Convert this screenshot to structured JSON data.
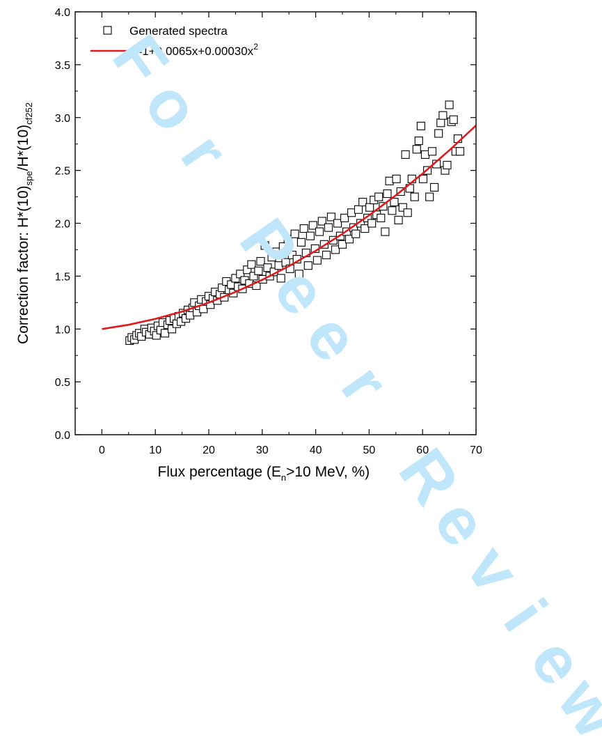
{
  "watermark": {
    "text": "For Peer Review",
    "color": "#bfe6fb"
  },
  "chart_data": {
    "type": "scatter",
    "xlabel_parts": [
      "Flux percentage (E",
      "n",
      ">10 MeV, %)"
    ],
    "ylabel_parts": [
      "Correction factor: H*(10)",
      "spe",
      "/H*(10)",
      "cf252"
    ],
    "xlim": [
      -5,
      70
    ],
    "ylim": [
      0.0,
      4.0
    ],
    "x_ticks": [
      0,
      10,
      20,
      30,
      40,
      50,
      60,
      70
    ],
    "y_ticks": [
      "0.0",
      "0.5",
      "1.0",
      "1.5",
      "2.0",
      "2.5",
      "3.0",
      "3.5",
      "4.0"
    ],
    "grid": false,
    "legend_position": "top-left",
    "series": [
      {
        "name": "Generated spectra",
        "kind": "scatter",
        "marker": "open-square",
        "color": "#000000",
        "points": [
          [
            5.2,
            0.89
          ],
          [
            5.6,
            0.92
          ],
          [
            6.1,
            0.9
          ],
          [
            6.5,
            0.94
          ],
          [
            7.0,
            0.96
          ],
          [
            7.4,
            0.93
          ],
          [
            8.0,
            1.0
          ],
          [
            8.3,
            0.97
          ],
          [
            8.9,
            0.95
          ],
          [
            9.3,
            1.01
          ],
          [
            9.8,
            0.98
          ],
          [
            10.2,
            0.94
          ],
          [
            10.5,
            1.03
          ],
          [
            11.0,
            0.99
          ],
          [
            11.4,
            1.06
          ],
          [
            11.8,
            0.96
          ],
          [
            12.3,
            1.04
          ],
          [
            12.7,
            1.08
          ],
          [
            13.1,
            1.0
          ],
          [
            13.5,
            1.1
          ],
          [
            14.0,
            1.05
          ],
          [
            14.4,
            1.12
          ],
          [
            14.8,
            1.07
          ],
          [
            15.2,
            1.15
          ],
          [
            15.7,
            1.1
          ],
          [
            16.1,
            1.18
          ],
          [
            16.5,
            1.13
          ],
          [
            17.0,
            1.2
          ],
          [
            17.3,
            1.25
          ],
          [
            17.8,
            1.16
          ],
          [
            18.2,
            1.22
          ],
          [
            18.6,
            1.28
          ],
          [
            19.0,
            1.19
          ],
          [
            19.5,
            1.26
          ],
          [
            20.0,
            1.31
          ],
          [
            20.3,
            1.23
          ],
          [
            20.8,
            1.29
          ],
          [
            21.2,
            1.35
          ],
          [
            21.6,
            1.27
          ],
          [
            22.1,
            1.33
          ],
          [
            22.5,
            1.39
          ],
          [
            22.9,
            1.3
          ],
          [
            23.3,
            1.45
          ],
          [
            23.8,
            1.37
          ],
          [
            24.2,
            1.42
          ],
          [
            24.6,
            1.34
          ],
          [
            25.0,
            1.48
          ],
          [
            25.5,
            1.4
          ],
          [
            25.9,
            1.52
          ],
          [
            26.3,
            1.38
          ],
          [
            26.7,
            1.46
          ],
          [
            27.2,
            1.56
          ],
          [
            27.6,
            1.43
          ],
          [
            28.0,
            1.61
          ],
          [
            28.4,
            1.5
          ],
          [
            28.9,
            1.41
          ],
          [
            29.3,
            1.55
          ],
          [
            29.7,
            1.64
          ],
          [
            30.1,
            1.47
          ],
          [
            30.5,
            1.79
          ],
          [
            31.0,
            1.58
          ],
          [
            31.4,
            1.5
          ],
          [
            31.8,
            1.68
          ],
          [
            32.2,
            1.54
          ],
          [
            32.7,
            1.73
          ],
          [
            33.1,
            1.6
          ],
          [
            33.5,
            1.48
          ],
          [
            33.9,
            1.78
          ],
          [
            34.4,
            1.63
          ],
          [
            34.8,
            1.85
          ],
          [
            35.2,
            1.57
          ],
          [
            35.6,
            1.7
          ],
          [
            36.1,
            1.9
          ],
          [
            36.5,
            1.66
          ],
          [
            36.9,
            1.52
          ],
          [
            37.3,
            1.82
          ],
          [
            37.8,
            1.95
          ],
          [
            38.2,
            1.72
          ],
          [
            38.6,
            1.6
          ],
          [
            39.0,
            1.88
          ],
          [
            39.5,
            1.98
          ],
          [
            39.9,
            1.76
          ],
          [
            40.3,
            1.65
          ],
          [
            40.7,
            1.92
          ],
          [
            41.2,
            2.02
          ],
          [
            41.6,
            1.8
          ],
          [
            42.0,
            1.7
          ],
          [
            42.4,
            1.96
          ],
          [
            42.9,
            2.06
          ],
          [
            43.3,
            1.84
          ],
          [
            43.7,
            1.75
          ],
          [
            44.1,
            2.0
          ],
          [
            44.6,
            1.88
          ],
          [
            45.0,
            1.8
          ],
          [
            45.4,
            2.05
          ],
          [
            45.8,
            1.92
          ],
          [
            46.3,
            1.85
          ],
          [
            46.7,
            2.1
          ],
          [
            47.1,
            1.96
          ],
          [
            47.5,
            1.9
          ],
          [
            48.0,
            2.13
          ],
          [
            48.4,
            2.0
          ],
          [
            48.8,
            2.2
          ],
          [
            49.2,
            1.95
          ],
          [
            49.7,
            2.05
          ],
          [
            50.1,
            2.15
          ],
          [
            50.5,
            2.0
          ],
          [
            50.9,
            2.22
          ],
          [
            51.4,
            2.08
          ],
          [
            51.8,
            2.25
          ],
          [
            52.2,
            2.05
          ],
          [
            52.6,
            2.16
          ],
          [
            53.0,
            1.92
          ],
          [
            53.4,
            2.28
          ],
          [
            53.8,
            2.4
          ],
          [
            54.3,
            2.12
          ],
          [
            54.7,
            2.2
          ],
          [
            55.1,
            2.42
          ],
          [
            55.5,
            2.03
          ],
          [
            55.9,
            2.3
          ],
          [
            56.3,
            2.15
          ],
          [
            56.8,
            2.65
          ],
          [
            57.2,
            2.1
          ],
          [
            57.6,
            2.33
          ],
          [
            58.0,
            2.42
          ],
          [
            58.5,
            2.25
          ],
          [
            58.9,
            2.7
          ],
          [
            59.3,
            2.78
          ],
          [
            59.7,
            2.92
          ],
          [
            60.1,
            2.42
          ],
          [
            60.5,
            2.65
          ],
          [
            60.9,
            2.5
          ],
          [
            61.3,
            2.25
          ],
          [
            61.8,
            2.68
          ],
          [
            62.2,
            2.34
          ],
          [
            62.6,
            2.56
          ],
          [
            63.0,
            2.85
          ],
          [
            63.4,
            2.95
          ],
          [
            63.8,
            3.02
          ],
          [
            64.2,
            2.5
          ],
          [
            64.6,
            2.55
          ],
          [
            65.0,
            3.12
          ],
          [
            65.4,
            2.96
          ],
          [
            65.8,
            2.98
          ],
          [
            66.2,
            2.68
          ],
          [
            66.6,
            2.8
          ],
          [
            67.0,
            2.68
          ]
        ]
      },
      {
        "name": "y=1+0.0065x+0.00030x",
        "name_superscript": "2",
        "kind": "line",
        "color": "#e0191c",
        "x": [
          0,
          5,
          10,
          15,
          20,
          25,
          30,
          35,
          40,
          45,
          50,
          55,
          60,
          65,
          70
        ],
        "y": [
          1.0,
          1.04,
          1.095,
          1.165,
          1.25,
          1.35,
          1.465,
          1.595,
          1.74,
          1.9,
          2.075,
          2.265,
          2.47,
          2.69,
          2.925
        ]
      }
    ]
  }
}
